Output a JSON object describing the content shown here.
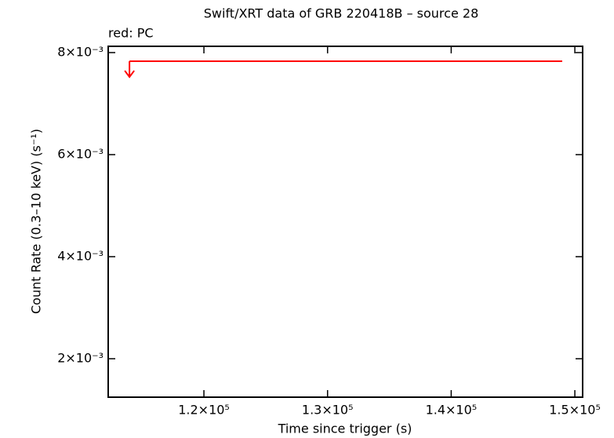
{
  "chart_data": {
    "type": "upper_limit",
    "title": "Swift/XRT data of GRB 220418B – source 28",
    "annotation": "red: PC",
    "xlabel": "Time since trigger (s)",
    "ylabel": "Count Rate (0.3–10 keV) (s⁻¹)",
    "xlim": [
      112260,
      150630
    ],
    "ylim": [
      0.001246,
      0.008123
    ],
    "xticks": [
      {
        "value": 120000,
        "label": "1.2×10⁵"
      },
      {
        "value": 130000,
        "label": "1.3×10⁵"
      },
      {
        "value": 140000,
        "label": "1.4×10⁵"
      },
      {
        "value": 150000,
        "label": "1.5×10⁵"
      }
    ],
    "yticks": [
      {
        "value": 0.002,
        "label": "2×10⁻³"
      },
      {
        "value": 0.004,
        "label": "4×10⁻³"
      },
      {
        "value": 0.006,
        "label": "6×10⁻³"
      },
      {
        "value": 0.008,
        "label": "8×10⁻³"
      }
    ],
    "series": [
      {
        "color": "#ff0000",
        "x_low": [
          113980
        ],
        "x_high": [
          148980
        ],
        "values": [
          0.00783
        ]
      }
    ]
  }
}
